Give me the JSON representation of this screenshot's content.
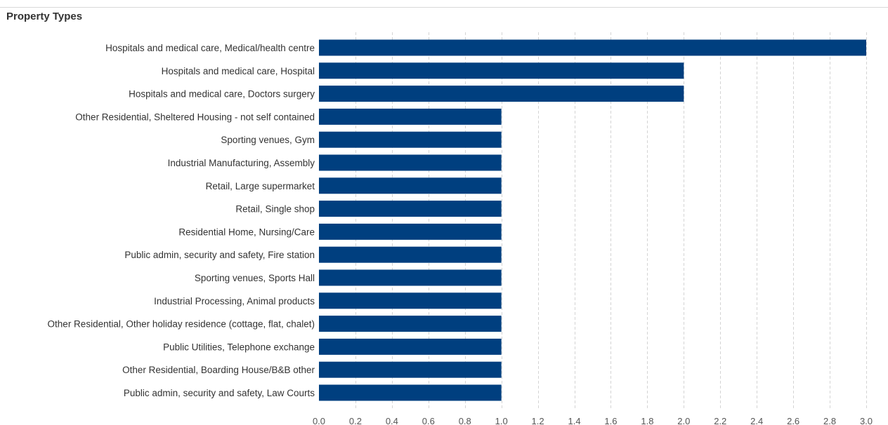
{
  "panel": {
    "title": "Property Types"
  },
  "colors": {
    "bar": "#003f7f",
    "gridline": "#d4d4d4"
  },
  "chart_data": {
    "type": "bar",
    "orientation": "horizontal",
    "title": "Property Types",
    "xlabel": "",
    "ylabel": "",
    "xlim": [
      0,
      3.0
    ],
    "x_ticks": [
      "0.0",
      "0.2",
      "0.4",
      "0.6",
      "0.8",
      "1.0",
      "1.2",
      "1.4",
      "1.6",
      "1.8",
      "2.0",
      "2.2",
      "2.4",
      "2.6",
      "2.8",
      "3.0"
    ],
    "grid": true,
    "categories": [
      "Hospitals and medical care, Medical/health centre",
      "Hospitals and medical care, Hospital",
      "Hospitals and medical care, Doctors surgery",
      "Other Residential, Sheltered Housing - not self contained",
      "Sporting venues, Gym",
      "Industrial Manufacturing, Assembly",
      "Retail, Large supermarket",
      "Retail, Single shop",
      "Residential Home, Nursing/Care",
      "Public admin, security and safety, Fire station",
      "Sporting venues, Sports Hall",
      "Industrial Processing, Animal products",
      "Other Residential, Other holiday residence (cottage, flat, chalet)",
      "Public Utilities, Telephone exchange",
      "Other Residential, Boarding House/B&B other",
      "Public admin, security and safety, Law Courts"
    ],
    "values": [
      3,
      2,
      2,
      1,
      1,
      1,
      1,
      1,
      1,
      1,
      1,
      1,
      1,
      1,
      1,
      1
    ]
  }
}
